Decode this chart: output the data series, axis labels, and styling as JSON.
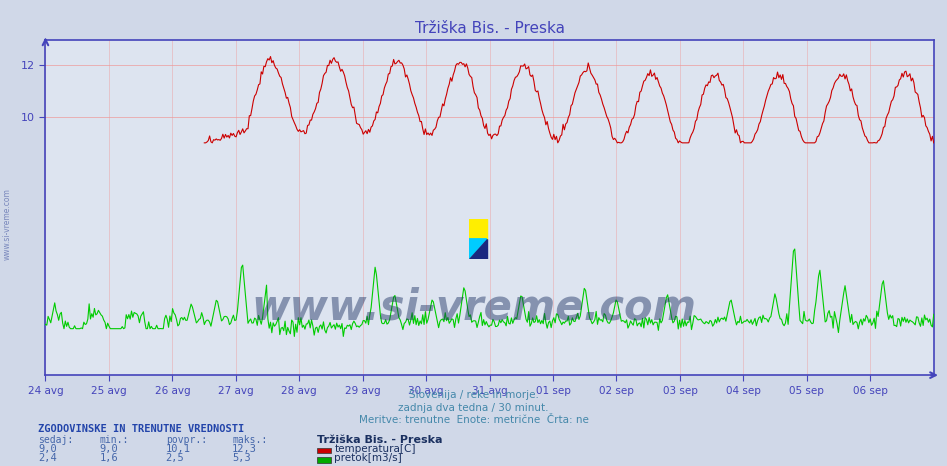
{
  "title": "Tržiška Bis. - Preska",
  "title_color": "#4444bb",
  "bg_color": "#d0d8e8",
  "plot_bg_color": "#dde4f0",
  "grid_color": "#ee9999",
  "xlabel_texts": [
    "24 avg",
    "25 avg",
    "26 avg",
    "27 avg",
    "28 avg",
    "29 avg",
    "30 avg",
    "31 avg",
    "01 sep",
    "02 sep",
    "03 sep",
    "04 sep",
    "05 sep",
    "06 sep"
  ],
  "footer_lines": [
    "Slovenija / reke in morje.",
    "zadnja dva tedna / 30 minut.",
    "Meritve: trenutne  Enote: metrične  Črta: ne"
  ],
  "stats_header": "ZGODOVINSKE IN TRENUTNE VREDNOSTI",
  "stats_cols": [
    "sedaj:",
    "min.:",
    "povpr.:",
    "maks.:"
  ],
  "stats_station": "Tržiška Bis. - Preska",
  "stats_rows": [
    {
      "values": [
        "9,0",
        "9,0",
        "10,1",
        "12,3"
      ],
      "label": "temperatura[C]",
      "color": "#cc0000"
    },
    {
      "values": [
        "2,4",
        "1,6",
        "2,5",
        "5,3"
      ],
      "label": "pretok[m3/s]",
      "color": "#00aa00"
    }
  ],
  "temp_color": "#cc0000",
  "flow_color": "#00cc00",
  "y_min": 0,
  "y_max": 13,
  "yticks": [
    10,
    12
  ],
  "num_points": 672,
  "watermark": "www.si-vreme.com",
  "watermark_color": "#1a3060",
  "watermark_alpha": 0.45,
  "axis_color": "#4444bb",
  "tick_label_color": "#4444bb",
  "side_text": "www.si-vreme.com",
  "side_text_color": "#5566aa"
}
